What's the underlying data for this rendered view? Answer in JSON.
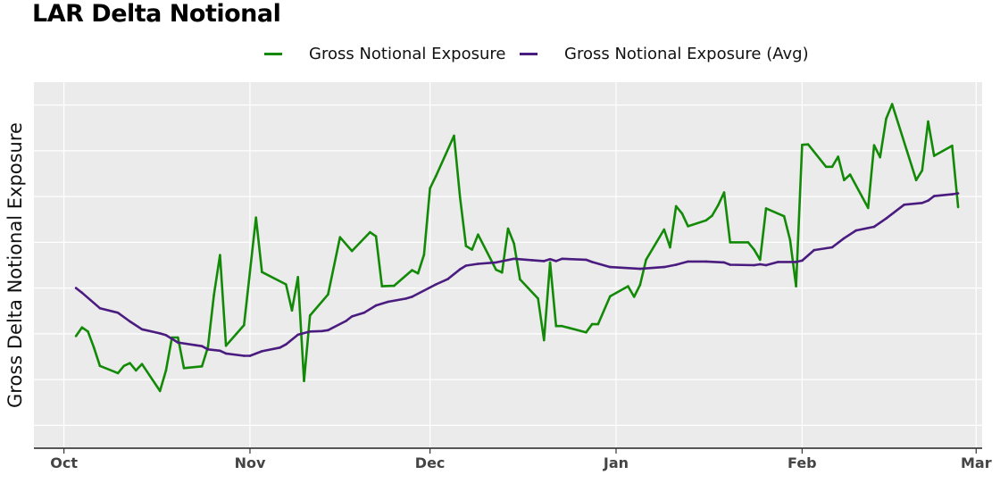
{
  "chart_data": {
    "type": "line",
    "title": "LAR Delta Notional",
    "xlabel": "",
    "ylabel": "Gross Delta Notional Exposure",
    "x_range": [
      "2023-09-26",
      "2024-03-02"
    ],
    "x_ticks": [
      {
        "date": "2023-10-01",
        "label": "Oct"
      },
      {
        "date": "2023-11-01",
        "label": "Nov"
      },
      {
        "date": "2023-12-01",
        "label": "Dec"
      },
      {
        "date": "2024-01-01",
        "label": "Jan"
      },
      {
        "date": "2024-02-01",
        "label": "Feb"
      },
      {
        "date": "2024-03-01",
        "label": "Mar"
      }
    ],
    "y_tick_labels_shown": false,
    "ylim": [
      -0.5,
      7.5
    ],
    "y_gridlines": [
      0,
      1,
      2,
      3,
      4,
      5,
      6,
      7
    ],
    "grid": true,
    "legend_position": "top",
    "background": "#ebebeb",
    "series": [
      {
        "name": "Gross Notional Exposure",
        "color": "#138a07",
        "points": [
          [
            "2023-10-03",
            1.95
          ],
          [
            "2023-10-04",
            2.14
          ],
          [
            "2023-10-05",
            2.05
          ],
          [
            "2023-10-06",
            1.7
          ],
          [
            "2023-10-07",
            1.3
          ],
          [
            "2023-10-10",
            1.14
          ],
          [
            "2023-10-11",
            1.3
          ],
          [
            "2023-10-12",
            1.36
          ],
          [
            "2023-10-13",
            1.2
          ],
          [
            "2023-10-14",
            1.34
          ],
          [
            "2023-10-17",
            0.75
          ],
          [
            "2023-10-18",
            1.2
          ],
          [
            "2023-10-19",
            1.92
          ],
          [
            "2023-10-20",
            1.92
          ],
          [
            "2023-10-21",
            1.25
          ],
          [
            "2023-10-24",
            1.29
          ],
          [
            "2023-10-25",
            1.71
          ],
          [
            "2023-10-26",
            2.85
          ],
          [
            "2023-10-27",
            3.72
          ],
          [
            "2023-10-28",
            1.74
          ],
          [
            "2023-10-31",
            2.19
          ],
          [
            "2023-11-02",
            4.54
          ],
          [
            "2023-11-03",
            3.35
          ],
          [
            "2023-11-07",
            3.08
          ],
          [
            "2023-11-08",
            2.51
          ],
          [
            "2023-11-09",
            3.24
          ],
          [
            "2023-11-10",
            0.97
          ],
          [
            "2023-11-11",
            2.4
          ],
          [
            "2023-11-14",
            2.86
          ],
          [
            "2023-11-16",
            4.11
          ],
          [
            "2023-11-18",
            3.81
          ],
          [
            "2023-11-21",
            4.22
          ],
          [
            "2023-11-22",
            4.13
          ],
          [
            "2023-11-23",
            3.04
          ],
          [
            "2023-11-25",
            3.05
          ],
          [
            "2023-11-28",
            3.39
          ],
          [
            "2023-11-29",
            3.32
          ],
          [
            "2023-11-30",
            3.73
          ],
          [
            "2023-12-01",
            5.18
          ],
          [
            "2023-12-02",
            5.45
          ],
          [
            "2023-12-05",
            6.33
          ],
          [
            "2023-12-06",
            4.99
          ],
          [
            "2023-12-07",
            3.92
          ],
          [
            "2023-12-08",
            3.84
          ],
          [
            "2023-12-09",
            4.17
          ],
          [
            "2023-12-12",
            3.4
          ],
          [
            "2023-12-13",
            3.34
          ],
          [
            "2023-12-14",
            4.3
          ],
          [
            "2023-12-15",
            3.97
          ],
          [
            "2023-12-16",
            3.19
          ],
          [
            "2023-12-19",
            2.77
          ],
          [
            "2023-12-20",
            1.86
          ],
          [
            "2023-12-21",
            3.56
          ],
          [
            "2023-12-22",
            2.17
          ],
          [
            "2023-12-23",
            2.17
          ],
          [
            "2023-12-27",
            2.03
          ],
          [
            "2023-12-28",
            2.21
          ],
          [
            "2023-12-29",
            2.21
          ],
          [
            "2023-12-31",
            2.82
          ],
          [
            "2024-01-03",
            3.04
          ],
          [
            "2024-01-04",
            2.81
          ],
          [
            "2024-01-05",
            3.07
          ],
          [
            "2024-01-06",
            3.62
          ],
          [
            "2024-01-09",
            4.28
          ],
          [
            "2024-01-10",
            3.89
          ],
          [
            "2024-01-11",
            4.79
          ],
          [
            "2024-01-12",
            4.63
          ],
          [
            "2024-01-13",
            4.35
          ],
          [
            "2024-01-16",
            4.48
          ],
          [
            "2024-01-17",
            4.58
          ],
          [
            "2024-01-18",
            4.81
          ],
          [
            "2024-01-19",
            5.09
          ],
          [
            "2024-01-20",
            4.0
          ],
          [
            "2024-01-23",
            4.0
          ],
          [
            "2024-01-24",
            3.84
          ],
          [
            "2024-01-25",
            3.62
          ],
          [
            "2024-01-26",
            4.74
          ],
          [
            "2024-01-29",
            4.57
          ],
          [
            "2024-01-30",
            4.05
          ],
          [
            "2024-01-31",
            3.04
          ],
          [
            "2024-02-01",
            6.13
          ],
          [
            "2024-02-02",
            6.14
          ],
          [
            "2024-02-05",
            5.65
          ],
          [
            "2024-02-06",
            5.65
          ],
          [
            "2024-02-07",
            5.87
          ],
          [
            "2024-02-08",
            5.36
          ],
          [
            "2024-02-09",
            5.48
          ],
          [
            "2024-02-12",
            4.75
          ],
          [
            "2024-02-13",
            6.12
          ],
          [
            "2024-02-14",
            5.86
          ],
          [
            "2024-02-15",
            6.7
          ],
          [
            "2024-02-16",
            7.02
          ],
          [
            "2024-02-20",
            5.36
          ],
          [
            "2024-02-21",
            5.57
          ],
          [
            "2024-02-22",
            6.64
          ],
          [
            "2024-02-23",
            5.89
          ],
          [
            "2024-02-26",
            6.11
          ],
          [
            "2024-02-27",
            4.77
          ]
        ]
      },
      {
        "name": "Gross Notional Exposure (Avg)",
        "color": "#4b1c7f",
        "points": [
          [
            "2023-10-03",
            3.0
          ],
          [
            "2023-10-04",
            2.9
          ],
          [
            "2023-10-07",
            2.56
          ],
          [
            "2023-10-10",
            2.46
          ],
          [
            "2023-10-12",
            2.27
          ],
          [
            "2023-10-14",
            2.1
          ],
          [
            "2023-10-17",
            2.01
          ],
          [
            "2023-10-18",
            1.97
          ],
          [
            "2023-10-20",
            1.81
          ],
          [
            "2023-10-23",
            1.75
          ],
          [
            "2023-10-24",
            1.73
          ],
          [
            "2023-10-25",
            1.66
          ],
          [
            "2023-10-27",
            1.63
          ],
          [
            "2023-10-28",
            1.57
          ],
          [
            "2023-10-31",
            1.52
          ],
          [
            "2023-11-01",
            1.52
          ],
          [
            "2023-11-03",
            1.62
          ],
          [
            "2023-11-06",
            1.7
          ],
          [
            "2023-11-07",
            1.77
          ],
          [
            "2023-11-09",
            1.98
          ],
          [
            "2023-11-11",
            2.05
          ],
          [
            "2023-11-13",
            2.06
          ],
          [
            "2023-11-14",
            2.08
          ],
          [
            "2023-11-17",
            2.28
          ],
          [
            "2023-11-18",
            2.38
          ],
          [
            "2023-11-20",
            2.46
          ],
          [
            "2023-11-22",
            2.62
          ],
          [
            "2023-11-24",
            2.7
          ],
          [
            "2023-11-27",
            2.77
          ],
          [
            "2023-11-28",
            2.81
          ],
          [
            "2023-12-02",
            3.08
          ],
          [
            "2023-12-04",
            3.2
          ],
          [
            "2023-12-06",
            3.41
          ],
          [
            "2023-12-07",
            3.49
          ],
          [
            "2023-12-09",
            3.53
          ],
          [
            "2023-12-12",
            3.56
          ],
          [
            "2023-12-15",
            3.64
          ],
          [
            "2023-12-18",
            3.61
          ],
          [
            "2023-12-20",
            3.59
          ],
          [
            "2023-12-21",
            3.63
          ],
          [
            "2023-12-22",
            3.59
          ],
          [
            "2023-12-23",
            3.64
          ],
          [
            "2023-12-27",
            3.62
          ],
          [
            "2023-12-28",
            3.57
          ],
          [
            "2023-12-31",
            3.46
          ],
          [
            "2024-01-05",
            3.42
          ],
          [
            "2024-01-09",
            3.46
          ],
          [
            "2024-01-11",
            3.51
          ],
          [
            "2024-01-13",
            3.58
          ],
          [
            "2024-01-16",
            3.58
          ],
          [
            "2024-01-19",
            3.56
          ],
          [
            "2024-01-20",
            3.51
          ],
          [
            "2024-01-24",
            3.5
          ],
          [
            "2024-01-25",
            3.52
          ],
          [
            "2024-01-26",
            3.5
          ],
          [
            "2024-01-28",
            3.57
          ],
          [
            "2024-01-31",
            3.57
          ],
          [
            "2024-02-01",
            3.6
          ],
          [
            "2024-02-03",
            3.83
          ],
          [
            "2024-02-06",
            3.89
          ],
          [
            "2024-02-08",
            4.09
          ],
          [
            "2024-02-10",
            4.26
          ],
          [
            "2024-02-13",
            4.34
          ],
          [
            "2024-02-15",
            4.52
          ],
          [
            "2024-02-18",
            4.82
          ],
          [
            "2024-02-21",
            4.86
          ],
          [
            "2024-02-22",
            4.91
          ],
          [
            "2024-02-23",
            5.01
          ],
          [
            "2024-02-26",
            5.05
          ],
          [
            "2024-02-27",
            5.07
          ]
        ]
      }
    ]
  }
}
